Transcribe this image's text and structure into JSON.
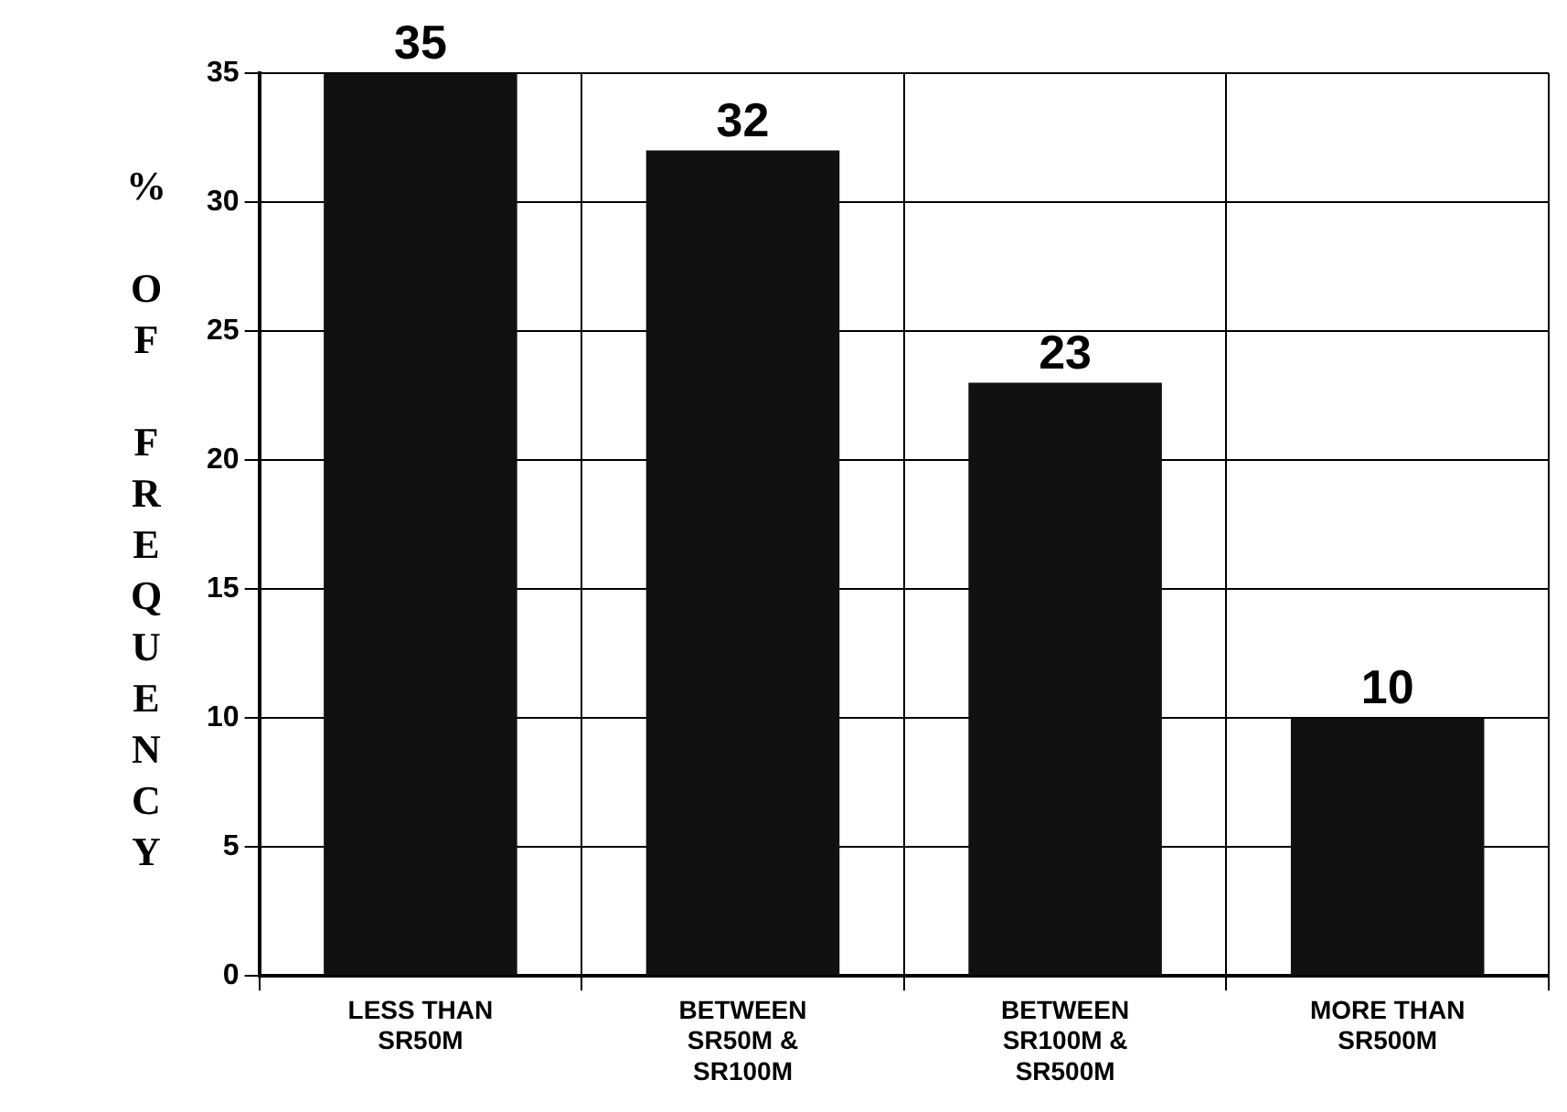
{
  "chart_data": {
    "type": "bar",
    "ylabel": "% OF FREQUENCY",
    "categories": [
      "LESS THAN SR50M",
      "BETWEEN SR50M & SR100M",
      "BETWEEN SR100M & SR500M",
      "MORE THAN SR500M"
    ],
    "values": [
      35,
      32,
      23,
      10
    ],
    "color": "#111111",
    "ylim": [
      0,
      35
    ],
    "yticks": [
      0,
      5,
      10,
      15,
      20,
      25,
      30,
      35
    ],
    "grid": true,
    "data_labels": true
  }
}
